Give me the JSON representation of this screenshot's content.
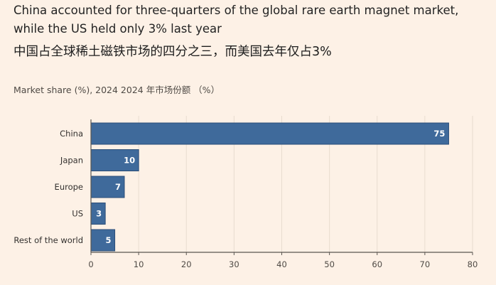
{
  "header": {
    "title_en_line1": "China accounted for three-quarters of the global rare earth magnet market,",
    "title_en_line2": "while the US held only 3% last year",
    "title_zh": "中国占全球稀土磁铁市场的四分之三，而美国去年仅占3%",
    "subtitle": "Market share (%), 2024  2024 年市场份额 （%）"
  },
  "colors": {
    "background": "#fdf1e6",
    "bar": "#3f6a9b",
    "bar_edge": "#2a4d78",
    "grid": "#e8dccf",
    "axis": "#5a5651"
  },
  "chart_data": {
    "type": "bar",
    "orientation": "horizontal",
    "title": "China accounted for three-quarters of the global rare earth magnet market, while the US held only 3% last year",
    "subtitle": "Market share (%), 2024  2024 年市场份额 （%）",
    "categories": [
      "China",
      "Japan",
      "Europe",
      "US",
      "Rest of the world"
    ],
    "values": [
      75,
      10,
      7,
      3,
      5
    ],
    "xlabel": "",
    "ylabel": "",
    "xlim": [
      0,
      80
    ],
    "xticks": [
      0,
      10,
      20,
      30,
      40,
      50,
      60,
      70,
      80
    ],
    "grid": true,
    "data_labels": true
  }
}
